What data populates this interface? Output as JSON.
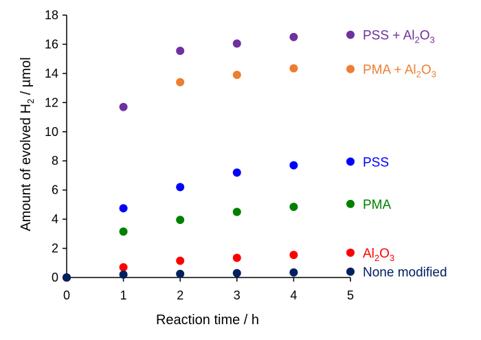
{
  "chart_data": {
    "type": "scatter",
    "xlabel": "Reaction time / h",
    "ylabel_parts": [
      "Amount of evolved H",
      "2",
      " / µmol"
    ],
    "xlim": [
      0,
      5
    ],
    "ylim": [
      0,
      18
    ],
    "xticks": [
      "0",
      "1",
      "2",
      "3",
      "4",
      "5"
    ],
    "yticks": [
      "0",
      "2",
      "4",
      "6",
      "8",
      "10",
      "12",
      "14",
      "16",
      "18"
    ],
    "grid": false,
    "legend_placement": "right, inline next to last point of each series",
    "series": [
      {
        "key": "pss-al2o3",
        "label_parts": [
          "PSS + Al",
          "2",
          "O",
          "3",
          ""
        ],
        "color": "#7030A0",
        "points": [
          [
            0,
            0
          ],
          [
            1,
            11.7
          ],
          [
            2,
            15.55
          ],
          [
            3,
            16.05
          ],
          [
            4,
            16.5
          ],
          [
            5,
            16.65
          ]
        ]
      },
      {
        "key": "pma-al2o3",
        "label_parts": [
          "PMA + Al",
          "2",
          "O",
          "3",
          ""
        ],
        "color": "#ED7D31",
        "points": [
          [
            0,
            0
          ],
          [
            2,
            13.4
          ],
          [
            3,
            13.9
          ],
          [
            4,
            14.35
          ],
          [
            5,
            14.3
          ]
        ]
      },
      {
        "key": "pss",
        "label_parts": [
          "PSS"
        ],
        "color": "#0000FF",
        "points": [
          [
            0,
            0
          ],
          [
            1,
            4.75
          ],
          [
            2,
            6.2
          ],
          [
            3,
            7.2
          ],
          [
            4,
            7.7
          ],
          [
            5,
            7.95
          ]
        ]
      },
      {
        "key": "pma",
        "label_parts": [
          "PMA"
        ],
        "color": "#008000",
        "points": [
          [
            0,
            0
          ],
          [
            1,
            3.15
          ],
          [
            2,
            3.95
          ],
          [
            3,
            4.5
          ],
          [
            4,
            4.85
          ],
          [
            5,
            5.05
          ]
        ]
      },
      {
        "key": "al2o3",
        "label_parts": [
          "Al",
          "2",
          "O",
          "3",
          ""
        ],
        "color": "#FF0000",
        "points": [
          [
            0,
            0
          ],
          [
            1,
            0.7
          ],
          [
            2,
            1.15
          ],
          [
            3,
            1.35
          ],
          [
            4,
            1.55
          ],
          [
            5,
            1.7
          ]
        ]
      },
      {
        "key": "none-modified",
        "label_parts": [
          "None modified"
        ],
        "color": "#002060",
        "points": [
          [
            0,
            0
          ],
          [
            1,
            0.2
          ],
          [
            2,
            0.25
          ],
          [
            3,
            0.3
          ],
          [
            4,
            0.35
          ],
          [
            5,
            0.4
          ]
        ]
      }
    ]
  }
}
